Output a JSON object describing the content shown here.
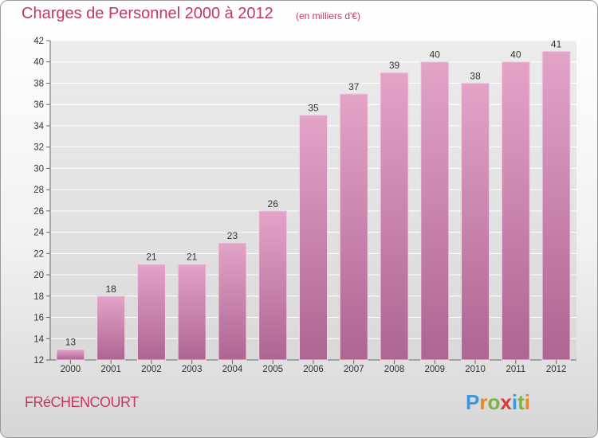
{
  "header": {
    "title": "Charges de Personnel 2000 à 2012",
    "subtitle": "(en milliers d'€)"
  },
  "footer": {
    "commune": "FRéCHENCOURT",
    "logo": {
      "letters": [
        "P",
        "r",
        "o",
        "x",
        "i",
        "t",
        "i"
      ],
      "colors": [
        "#3a9ad9",
        "#e8862a",
        "#7cb342",
        "#d93a3a",
        "#3a9ad9",
        "#7cb342",
        "#e8862a"
      ]
    }
  },
  "chart_data": {
    "type": "bar",
    "title": "Charges de Personnel 2000 à 2012",
    "subtitle": "(en milliers d'€)",
    "categories": [
      "2000",
      "2001",
      "2002",
      "2003",
      "2004",
      "2005",
      "2006",
      "2007",
      "2008",
      "2009",
      "2010",
      "2011",
      "2012"
    ],
    "values": [
      13,
      18,
      21,
      21,
      23,
      26,
      35,
      37,
      39,
      40,
      38,
      40,
      41
    ],
    "ylim": [
      12,
      42
    ],
    "yticks": [
      12,
      14,
      16,
      18,
      20,
      22,
      24,
      26,
      28,
      30,
      32,
      34,
      36,
      38,
      40,
      42
    ],
    "grid": true,
    "bar_color": "#cc7aa6"
  }
}
